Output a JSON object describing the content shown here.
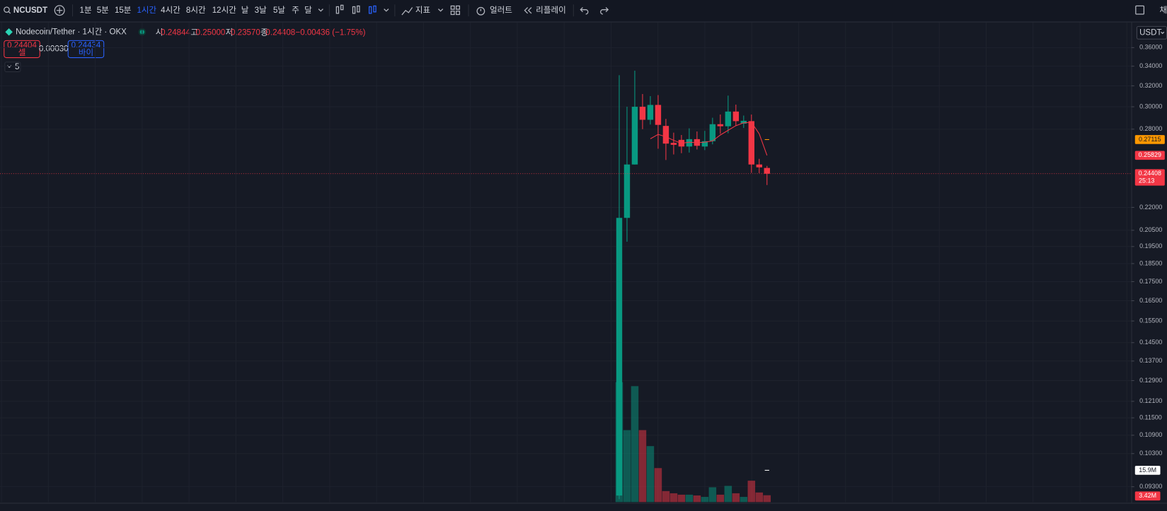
{
  "toolbar": {
    "symbol": "NCUSDT",
    "intervals": [
      "1분",
      "5분",
      "15분",
      "1시간",
      "4시간",
      "8시간",
      "12시간",
      "날",
      "3날",
      "5날",
      "주",
      "달"
    ],
    "active_interval": 3,
    "indicators": "지표",
    "alerts": "얼러트",
    "replay": "리플레이",
    "right_cut": "채"
  },
  "legend": {
    "title": "Nodecoin/Tether · 1시간 · OKX",
    "ohlc": [
      {
        "label": "시",
        "value": "0.24844"
      },
      {
        "label": "고",
        "value": "0.25000"
      },
      {
        "label": "저",
        "value": "0.23570"
      },
      {
        "label": "종",
        "value": "0.24408"
      }
    ],
    "change": "−0.00436 (−1.75%)"
  },
  "trade": {
    "sell_price": "0.24404",
    "sell": "셀",
    "spread": "0.00030",
    "buy_price": "0.24434",
    "buy": "바이"
  },
  "indicator_count": "5",
  "currency": "USDT",
  "chart_data": {
    "type": "candlestick",
    "log_scale": true,
    "grid": true,
    "up_color": "#089981",
    "down_color": "#f23645",
    "open": [
      0.0905,
      0.213,
      0.2511,
      0.3,
      0.2882,
      0.3017,
      0.2828,
      0.2684,
      0.2709,
      0.2654,
      0.2715,
      0.2654,
      0.2698,
      0.2843,
      0.2825,
      0.2956,
      0.2848,
      0.287,
      0.2511,
      0.24844
    ],
    "high": [
      0.3307,
      0.3,
      0.3353,
      0.312,
      0.31,
      0.311,
      0.289,
      0.277,
      0.275,
      0.2807,
      0.278,
      0.2785,
      0.29,
      0.2929,
      0.3105,
      0.302,
      0.292,
      0.2929,
      0.2555,
      0.25
    ],
    "low": [
      0.0895,
      0.1979,
      0.251,
      0.28,
      0.284,
      0.2636,
      0.2546,
      0.259,
      0.26,
      0.2605,
      0.263,
      0.2625,
      0.2672,
      0.276,
      0.2765,
      0.283,
      0.281,
      0.2447,
      0.2445,
      0.2357
    ],
    "close": [
      0.213,
      0.2511,
      0.3,
      0.2882,
      0.3017,
      0.2837,
      0.2678,
      0.2668,
      0.2654,
      0.2715,
      0.266,
      0.2698,
      0.2843,
      0.2825,
      0.2956,
      0.287,
      0.2873,
      0.2511,
      0.2489,
      0.24408
    ],
    "volume": [
      60,
      36,
      58,
      36,
      28,
      17,
      5.5,
      4.4,
      3.7,
      3.7,
      3.3,
      2.6,
      7.4,
      3.7,
      8.1,
      4.4,
      2.6,
      10.7,
      4.8,
      3.42
    ],
    "volume_value_labels": [
      null,
      null,
      null,
      null,
      null,
      null,
      null,
      null,
      null,
      null,
      null,
      null,
      null,
      null,
      null,
      null,
      null,
      null,
      null,
      "3.42M"
    ],
    "volume_markers": [
      {
        "value": 15.9,
        "label": "15.9M"
      }
    ],
    "ma": {
      "color": "#f23645",
      "values": [
        null,
        null,
        null,
        null,
        0.2718,
        0.2755,
        0.2735,
        0.2705,
        0.268,
        0.269,
        0.2685,
        0.269,
        0.27,
        0.275,
        0.279,
        0.283,
        0.2855,
        0.286,
        0.276,
        0.25829
      ]
    },
    "price_labels": [
      {
        "value": 0.27115,
        "label": "0.27115",
        "color": "#ff9800"
      },
      {
        "value": 0.25829,
        "label": "0.25829",
        "color": "#f23645"
      },
      {
        "value": 0.24408,
        "label": "0.24408",
        "color": "#f23645"
      }
    ],
    "countdown": "25:13",
    "ylim": [
      0.0887,
      0.3892
    ],
    "y2lim": [
      0,
      240
    ],
    "yticks": [
      {
        "value": 0.36,
        "label": "0.36000"
      },
      {
        "value": 0.34,
        "label": "0.34000"
      },
      {
        "value": 0.32,
        "label": "0.32000"
      },
      {
        "value": 0.3,
        "label": "0.30000"
      },
      {
        "value": 0.28,
        "label": "0.28000"
      },
      {
        "value": 0.22,
        "label": "0.22000"
      },
      {
        "value": 0.205,
        "label": "0.20500"
      },
      {
        "value": 0.195,
        "label": "0.19500"
      },
      {
        "value": 0.185,
        "label": "0.18500"
      },
      {
        "value": 0.175,
        "label": "0.17500"
      },
      {
        "value": 0.165,
        "label": "0.16500"
      },
      {
        "value": 0.155,
        "label": "0.15500"
      },
      {
        "value": 0.145,
        "label": "0.14500"
      },
      {
        "value": 0.137,
        "label": "0.13700"
      },
      {
        "value": 0.129,
        "label": "0.12900"
      },
      {
        "value": 0.121,
        "label": "0.12100"
      },
      {
        "value": 0.115,
        "label": "0.11500"
      },
      {
        "value": 0.109,
        "label": "0.10900"
      },
      {
        "value": 0.103,
        "label": "0.10300"
      },
      {
        "value": 0.093,
        "label": "0.09300"
      }
    ]
  }
}
